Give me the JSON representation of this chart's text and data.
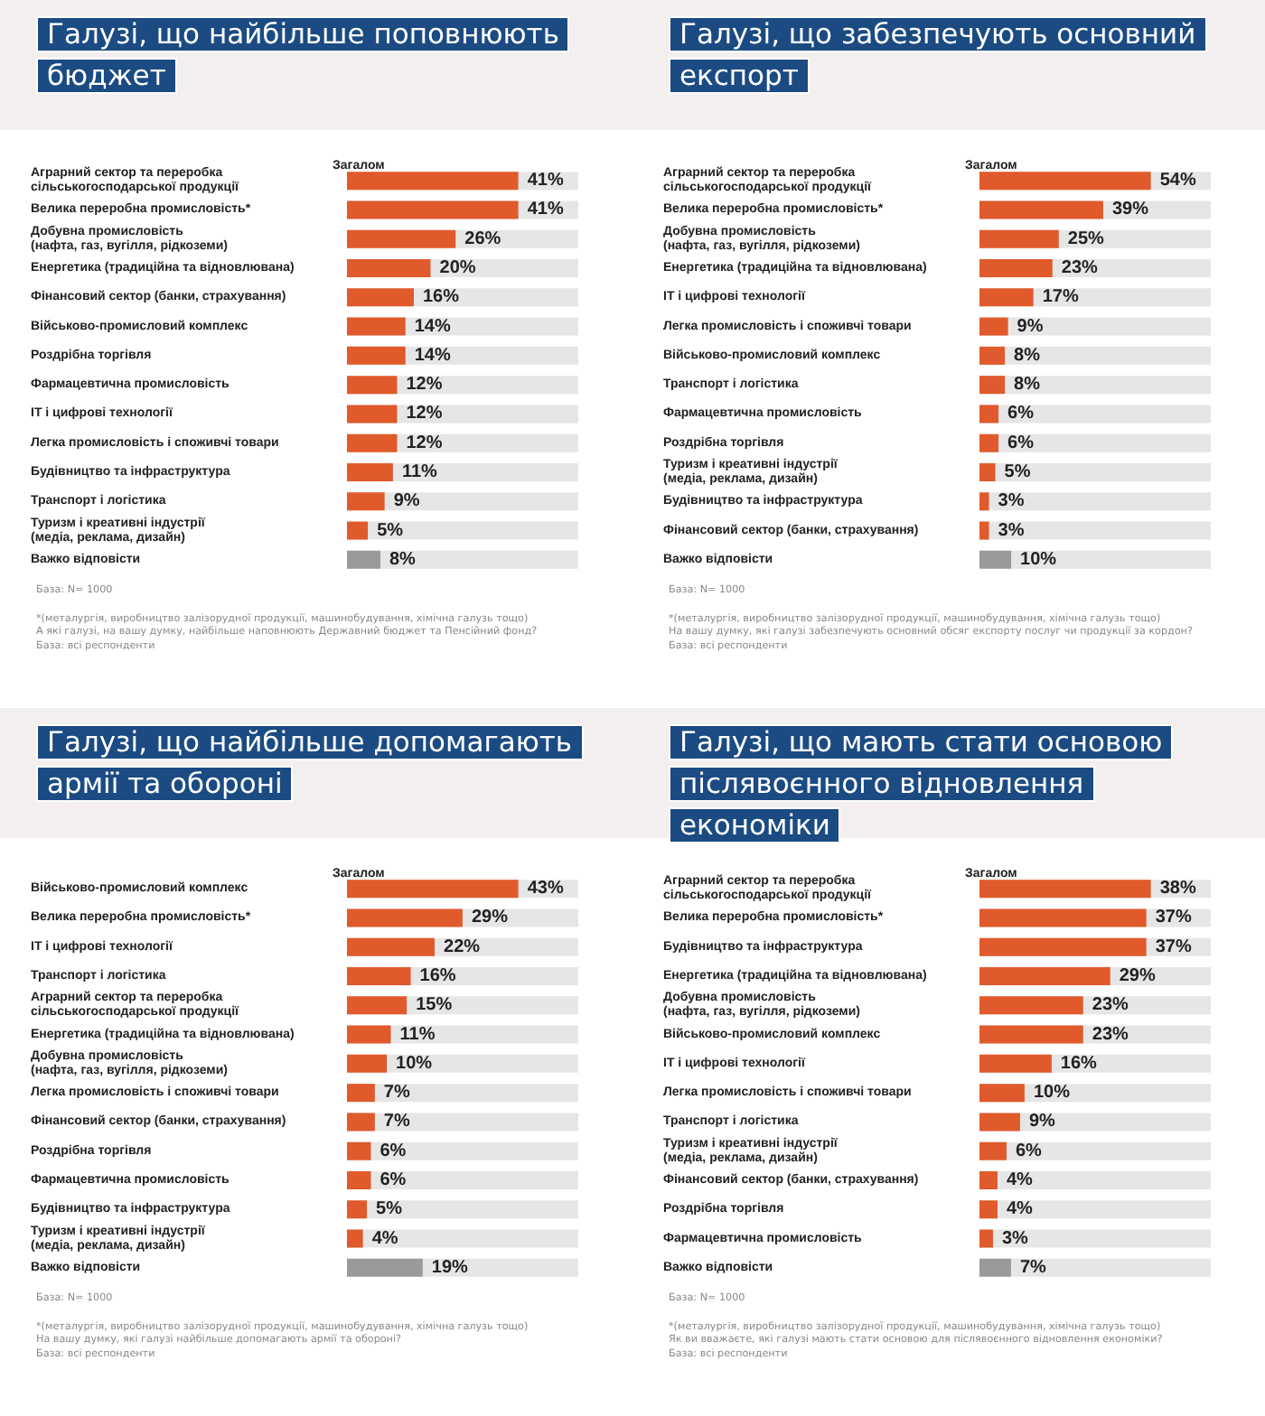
{
  "chart_data": [
    {
      "type": "bar",
      "orientation": "horizontal",
      "title": "Галузі, що найбільше поповнюють бюджет",
      "xlabel": "Загалом",
      "categories": [
        "Аграрний сектор та переробка\nсільськогосподарської продукції",
        "Велика переробна промисловість*",
        "Добувна промисловість\n(нафта, газ, вугілля, рідкоземи)",
        "Енергетика (традиційна та відновлювана)",
        "Фінансовий сектор (банки, страхування)",
        "Військово-промисловий комплекс",
        "Роздрібна торгівля",
        "Фармацевтична промисловість",
        "ІТ і цифрові технології",
        "Легка промисловість і споживчі товари",
        "Будівництво та інфраструктура",
        "Транспорт і логістика",
        "Туризм і креативні індустрії\n(медіа, реклама, дизайн)",
        "Важко відповісти"
      ],
      "values": [
        41,
        41,
        26,
        20,
        16,
        14,
        14,
        12,
        12,
        12,
        11,
        9,
        5,
        8
      ],
      "value_labels": [
        "41%",
        "41%",
        "26%",
        "20%",
        "16%",
        "14%",
        "14%",
        "12%",
        "12%",
        "12%",
        "11%",
        "9%",
        "5%",
        "8%"
      ],
      "colors": [
        "#e05a2b",
        "#e05a2b",
        "#e05a2b",
        "#e05a2b",
        "#e05a2b",
        "#e05a2b",
        "#e05a2b",
        "#e05a2b",
        "#e05a2b",
        "#e05a2b",
        "#e05a2b",
        "#e05a2b",
        "#e05a2b",
        "#9a9a9a"
      ],
      "annotations": [
        "База: N= 1000",
        "*(металургія, виробництво залізорудної продукції, машинобудування, хімічна галузь тощо)",
        "А які галузі, на вашу думку, найбільше наповнюють Державний бюджет та Пенсійний фонд?",
        "База: всі респонденти"
      ]
    },
    {
      "type": "bar",
      "orientation": "horizontal",
      "title": "Галузі, що забезпечують основний експорт",
      "xlabel": "Загалом",
      "categories": [
        "Аграрний сектор та переробка\nсільськогосподарської продукції",
        "Велика переробна промисловість*",
        "Добувна промисловість\n(нафта, газ, вугілля, рідкоземи)",
        "Енергетика (традиційна та відновлювана)",
        "ІТ і цифрові технології",
        "Легка промисловість і споживчі товари",
        "Військово-промисловий комплекс",
        "Транспорт і логістика",
        "Фармацевтична промисловість",
        "Роздрібна торгівля",
        "Туризм і креативні індустрії\n(медіа, реклама, дизайн)",
        "Будівництво та інфраструктура",
        "Фінансовий сектор (банки, страхування)",
        "Важко відповісти"
      ],
      "values": [
        54,
        39,
        25,
        23,
        17,
        9,
        8,
        8,
        6,
        6,
        5,
        3,
        3,
        10
      ],
      "value_labels": [
        "54%",
        "39%",
        "25%",
        "23%",
        "17%",
        "9%",
        "8%",
        "8%",
        "6%",
        "6%",
        "5%",
        "3%",
        "3%",
        "10%"
      ],
      "colors": [
        "#e05a2b",
        "#e05a2b",
        "#e05a2b",
        "#e05a2b",
        "#e05a2b",
        "#e05a2b",
        "#e05a2b",
        "#e05a2b",
        "#e05a2b",
        "#e05a2b",
        "#e05a2b",
        "#e05a2b",
        "#e05a2b",
        "#9a9a9a"
      ],
      "annotations": [
        "База: N= 1000",
        "*(металургія, виробництво залізорудної продукції, машинобудування, хімічна галузь тощо)",
        "На вашу думку, які галузі забезпечують основний обсяг експорту послуг чи продукції за кордон?",
        "База: всі респонденти"
      ]
    },
    {
      "type": "bar",
      "orientation": "horizontal",
      "title": "Галузі, що найбільше допомагають армії та обороні",
      "xlabel": "Загалом",
      "categories": [
        "Військово-промисловий комплекс",
        "Велика переробна промисловість*",
        "ІТ і цифрові технології",
        "Транспорт і логістика",
        "Аграрний сектор та переробка\nсільськогосподарської продукції",
        "Енергетика (традиційна та відновлювана)",
        "Добувна промисловість\n(нафта, газ, вугілля, рідкоземи)",
        "Легка промисловість і споживчі товари",
        "Фінансовий сектор (банки, страхування)",
        "Роздрібна торгівля",
        "Фармацевтична промисловість",
        "Будівництво та інфраструктура",
        "Туризм і креативні індустрії\n(медіа, реклама, дизайн)",
        "Важко відповісти"
      ],
      "values": [
        43,
        29,
        22,
        16,
        15,
        11,
        10,
        7,
        7,
        6,
        6,
        5,
        4,
        19
      ],
      "value_labels": [
        "43%",
        "29%",
        "22%",
        "16%",
        "15%",
        "11%",
        "10%",
        "7%",
        "7%",
        "6%",
        "6%",
        "5%",
        "4%",
        "19%"
      ],
      "colors": [
        "#e05a2b",
        "#e05a2b",
        "#e05a2b",
        "#e05a2b",
        "#e05a2b",
        "#e05a2b",
        "#e05a2b",
        "#e05a2b",
        "#e05a2b",
        "#e05a2b",
        "#e05a2b",
        "#e05a2b",
        "#e05a2b",
        "#9a9a9a"
      ],
      "annotations": [
        "База: N= 1000",
        "*(металургія, виробництво залізорудної продукції, машинобудування, хімічна галузь тощо)",
        "На вашу думку, які галузі найбільше допомагають армії та обороні?",
        "База: всі респонденти"
      ]
    },
    {
      "type": "bar",
      "orientation": "horizontal",
      "title": "Галузі, що мають стати основою післявоєнного відновлення економіки",
      "xlabel": "Загалом",
      "categories": [
        "Аграрний сектор та переробка\nсільськогосподарської продукції",
        "Велика переробна промисловість*",
        "Будівництво та інфраструктура",
        "Енергетика (традиційна та відновлювана)",
        "Добувна промисловість\n(нафта, газ, вугілля, рідкоземи)",
        "Військово-промисловий комплекс",
        "ІТ і цифрові технології",
        "Легка промисловість і споживчі товари",
        "Транспорт і логістика",
        "Туризм і креативні індустрії\n(медіа, реклама, дизайн)",
        "Фінансовий сектор (банки, страхування)",
        "Роздрібна торгівля",
        "Фармацевтична промисловість",
        "Важко відповісти"
      ],
      "values": [
        38,
        37,
        37,
        29,
        23,
        23,
        16,
        10,
        9,
        6,
        4,
        4,
        3,
        7
      ],
      "value_labels": [
        "38%",
        "37%",
        "37%",
        "29%",
        "23%",
        "23%",
        "16%",
        "10%",
        "9%",
        "6%",
        "4%",
        "4%",
        "3%",
        "7%"
      ],
      "colors": [
        "#e05a2b",
        "#e05a2b",
        "#e05a2b",
        "#e05a2b",
        "#e05a2b",
        "#e05a2b",
        "#e05a2b",
        "#e05a2b",
        "#e05a2b",
        "#e05a2b",
        "#e05a2b",
        "#e05a2b",
        "#e05a2b",
        "#9a9a9a"
      ],
      "annotations": [
        "База: N= 1000",
        "*(металургія, виробництво залізорудної продукції, машинобудування, хімічна галузь тощо)",
        "Як ви вважаєте, які галузі мають стати основою для післявоєнного відновлення економіки?",
        "База: всі респонденти"
      ]
    }
  ]
}
